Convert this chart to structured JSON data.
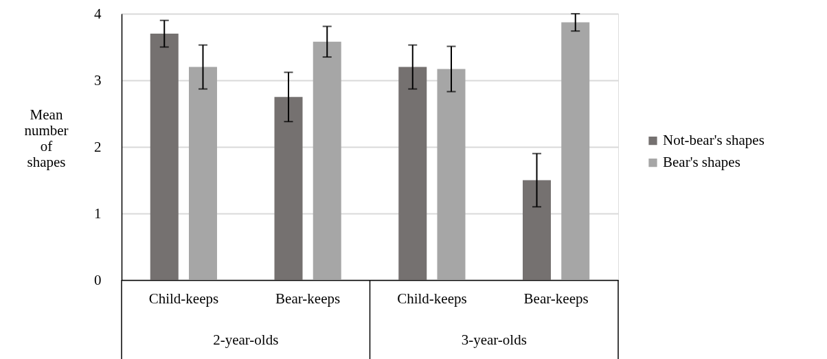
{
  "chart_data": {
    "type": "bar",
    "categories": [
      "Child-keeps",
      "Bear-keeps",
      "Child-keeps",
      "Bear-keeps"
    ],
    "series": [
      {
        "name": "Not-bear's shapes",
        "color": "#757170",
        "values": [
          3.7,
          2.75,
          3.2,
          1.5
        ],
        "errors": [
          0.2,
          0.37,
          0.33,
          0.4
        ]
      },
      {
        "name": "Bear's shapes",
        "color": "#a6a6a6",
        "values": [
          3.2,
          3.58,
          3.17,
          3.87
        ],
        "errors": [
          0.33,
          0.23,
          0.34,
          0.13
        ]
      }
    ],
    "ylabel": "Mean number of shapes",
    "annotations": [
      "2-year-olds",
      "3-year-olds"
    ],
    "ylim": [
      0,
      4
    ],
    "yticks": [
      0,
      1,
      2,
      3,
      4
    ],
    "grid": "y",
    "legend": "right"
  }
}
